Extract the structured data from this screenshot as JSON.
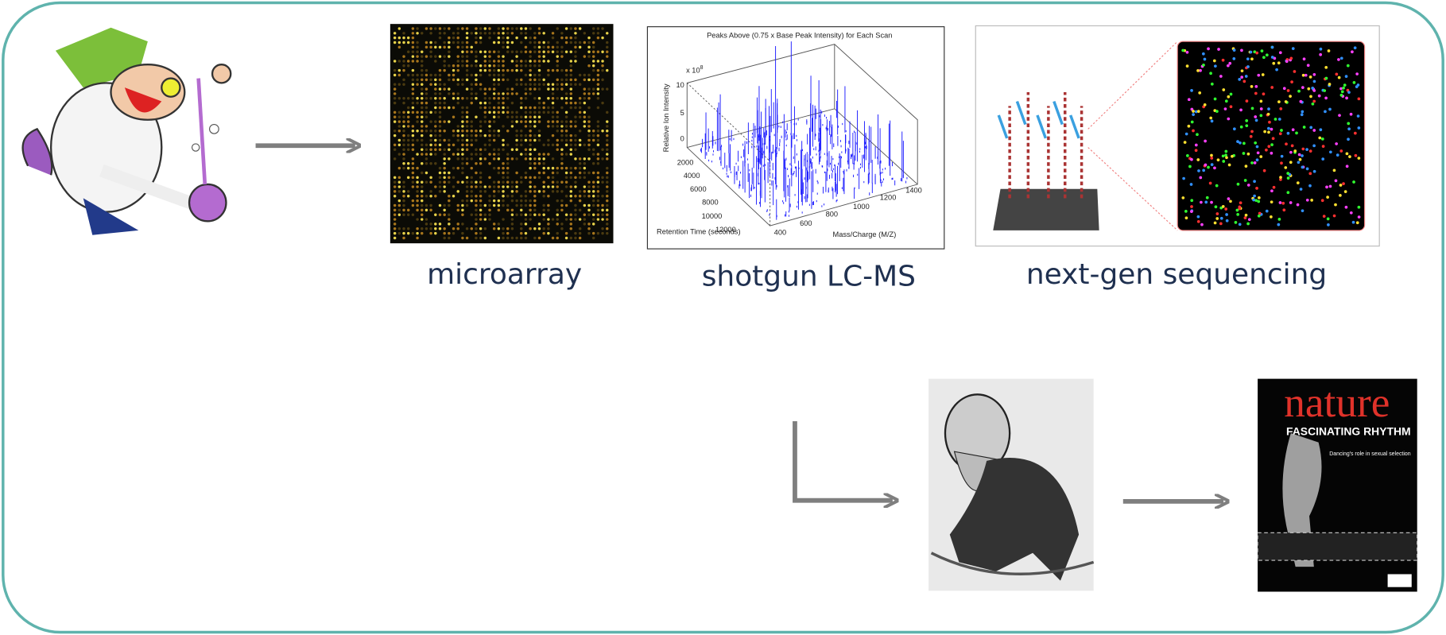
{
  "labels": {
    "microarray": "microarray",
    "lcms": "shotgun LC-MS",
    "ngs": "next-gen sequencing"
  },
  "lcms_plot": {
    "title": "Peaks Above (0.75 x Base Peak Intensity) for Each Scan",
    "scale_base": "x 10",
    "scale_exp": 8,
    "y_label": "Relative Ion Intensity",
    "x_label": "Mass/Charge (M/Z)",
    "z_label": "Retention Time (seconds)",
    "y_ticks": [
      10,
      5,
      0
    ],
    "z_ticks": [
      2000,
      4000,
      6000,
      8000,
      10000,
      12000
    ],
    "x_ticks": [
      400,
      600,
      800,
      1000,
      1200,
      1400
    ]
  },
  "nature_cover": {
    "masthead": "nature",
    "headline": "FASCINATING RHYTHM",
    "subhead": "Dancing's role in sexual selection"
  }
}
